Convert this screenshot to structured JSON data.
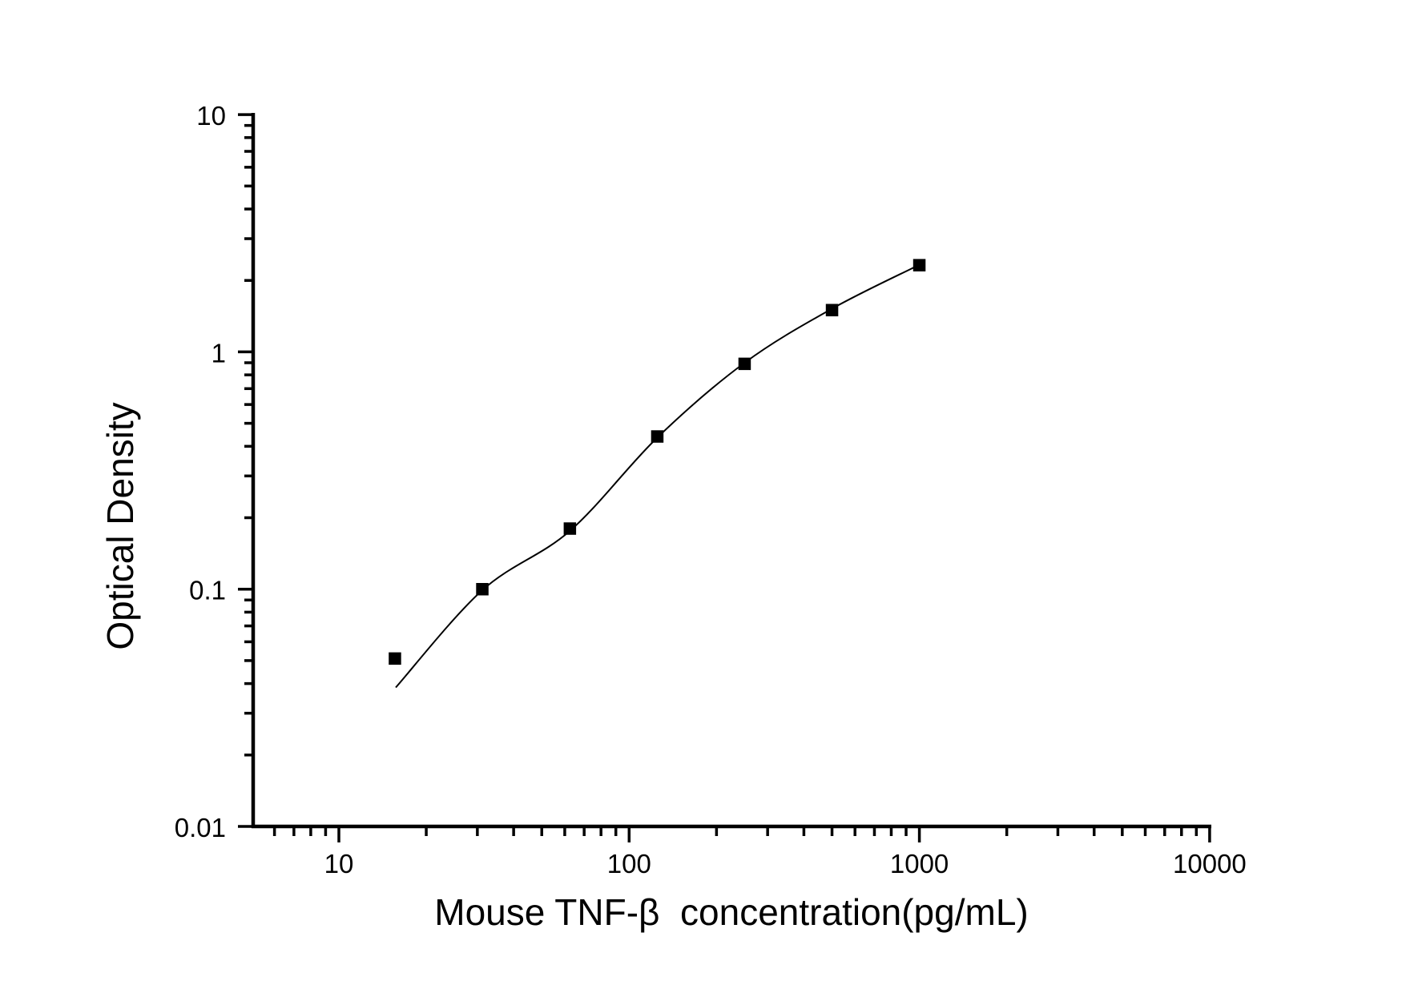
{
  "page": {
    "background_color": "#ffffff"
  },
  "chart_data": {
    "type": "scatter",
    "title": "",
    "xlabel": "Mouse TNF-β  concentration(pg/mL)",
    "ylabel": "Optical Density",
    "x_scale": "log",
    "y_scale": "log",
    "xlim": [
      5,
      10000
    ],
    "ylim": [
      0.01,
      10
    ],
    "x_major_ticks": [
      10,
      100,
      1000,
      10000
    ],
    "x_tick_labels": [
      "10",
      "100",
      "1000",
      "10000"
    ],
    "y_major_ticks": [
      0.01,
      0.1,
      1,
      10
    ],
    "y_tick_labels": [
      "0.01",
      "0.1",
      "1",
      "10"
    ],
    "minor_ticks": "log multiples 2-9 each decade, drawn outward",
    "grid": false,
    "legend_position": "none",
    "series": [
      {
        "name": "standard-points",
        "type": "scatter",
        "marker": "filled-square",
        "color": "#000000",
        "x": [
          15.6,
          31.2,
          62.5,
          125,
          250,
          500,
          1000
        ],
        "y": [
          0.051,
          0.1,
          0.18,
          0.44,
          0.89,
          1.5,
          2.32
        ]
      },
      {
        "name": "fitted-curve",
        "type": "line",
        "color": "#000000",
        "x": [
          15.7,
          31.2,
          62.5,
          125,
          250,
          500,
          968
        ],
        "y": [
          0.0385,
          0.099,
          0.176,
          0.435,
          0.9,
          1.52,
          2.285
        ]
      }
    ],
    "colors": {
      "foreground": "#000000",
      "background": "#ffffff"
    }
  }
}
